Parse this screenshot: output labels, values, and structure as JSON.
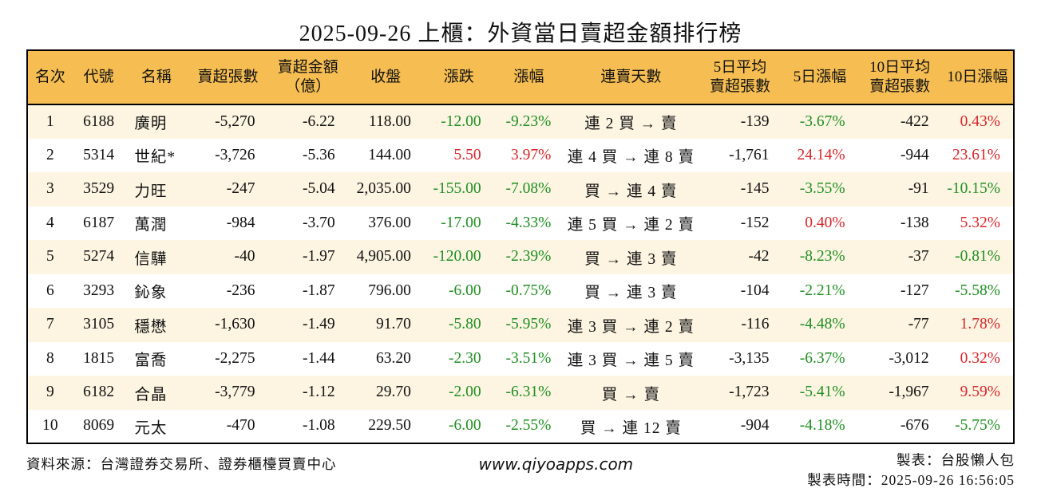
{
  "title": "2025-09-26 上櫃：外資當日賣超金額排行榜",
  "colors": {
    "up_red": "#d8262b",
    "down_green": "#1f8f22",
    "header_bg": "#f6be52",
    "row_alt_bg": "#fdf5e2",
    "border": "#000000"
  },
  "table": {
    "columns": [
      {
        "lines": [
          "名次"
        ]
      },
      {
        "lines": [
          "代號"
        ]
      },
      {
        "lines": [
          "名稱"
        ]
      },
      {
        "lines": [
          "賣超張數"
        ]
      },
      {
        "lines": [
          "賣超金額",
          "（億）"
        ]
      },
      {
        "lines": [
          "收盤"
        ]
      },
      {
        "lines": [
          "漲跌"
        ]
      },
      {
        "lines": [
          "漲幅"
        ]
      },
      {
        "lines": [
          "連賣天數"
        ]
      },
      {
        "lines": [
          "5日平均",
          "賣超張數"
        ]
      },
      {
        "lines": [
          "5日漲幅"
        ]
      },
      {
        "lines": [
          "10日平均",
          "賣超張數"
        ]
      },
      {
        "lines": [
          "10日漲幅"
        ]
      }
    ],
    "rows": [
      {
        "rank": "1",
        "code": "6188",
        "name": "廣明",
        "sell_shares": "-5,270",
        "sell_amount": "-6.22",
        "close": "118.00",
        "change": "-12.00",
        "change_pct": "-9.23%",
        "change_color": "down",
        "streak": "連 2 買 → 賣",
        "avg5": "-139",
        "pct5": "-3.67%",
        "pct5_color": "down",
        "avg10": "-422",
        "pct10": "0.43%",
        "pct10_color": "up"
      },
      {
        "rank": "2",
        "code": "5314",
        "name": "世紀*",
        "sell_shares": "-3,726",
        "sell_amount": "-5.36",
        "close": "144.00",
        "change": "5.50",
        "change_pct": "3.97%",
        "change_color": "up",
        "streak": "連 4 買 → 連 8 賣",
        "avg5": "-1,761",
        "pct5": "24.14%",
        "pct5_color": "up",
        "avg10": "-944",
        "pct10": "23.61%",
        "pct10_color": "up"
      },
      {
        "rank": "3",
        "code": "3529",
        "name": "力旺",
        "sell_shares": "-247",
        "sell_amount": "-5.04",
        "close": "2,035.00",
        "change": "-155.00",
        "change_pct": "-7.08%",
        "change_color": "down",
        "streak": "買 → 連 4 賣",
        "avg5": "-145",
        "pct5": "-3.55%",
        "pct5_color": "down",
        "avg10": "-91",
        "pct10": "-10.15%",
        "pct10_color": "down"
      },
      {
        "rank": "4",
        "code": "6187",
        "name": "萬潤",
        "sell_shares": "-984",
        "sell_amount": "-3.70",
        "close": "376.00",
        "change": "-17.00",
        "change_pct": "-4.33%",
        "change_color": "down",
        "streak": "連 5 買 → 連 2 賣",
        "avg5": "-152",
        "pct5": "0.40%",
        "pct5_color": "up",
        "avg10": "-138",
        "pct10": "5.32%",
        "pct10_color": "up"
      },
      {
        "rank": "5",
        "code": "5274",
        "name": "信驊",
        "sell_shares": "-40",
        "sell_amount": "-1.97",
        "close": "4,905.00",
        "change": "-120.00",
        "change_pct": "-2.39%",
        "change_color": "down",
        "streak": "買 → 連 3 賣",
        "avg5": "-42",
        "pct5": "-8.23%",
        "pct5_color": "down",
        "avg10": "-37",
        "pct10": "-0.81%",
        "pct10_color": "down"
      },
      {
        "rank": "6",
        "code": "3293",
        "name": "鈊象",
        "sell_shares": "-236",
        "sell_amount": "-1.87",
        "close": "796.00",
        "change": "-6.00",
        "change_pct": "-0.75%",
        "change_color": "down",
        "streak": "買 → 連 3 賣",
        "avg5": "-104",
        "pct5": "-2.21%",
        "pct5_color": "down",
        "avg10": "-127",
        "pct10": "-5.58%",
        "pct10_color": "down"
      },
      {
        "rank": "7",
        "code": "3105",
        "name": "穩懋",
        "sell_shares": "-1,630",
        "sell_amount": "-1.49",
        "close": "91.70",
        "change": "-5.80",
        "change_pct": "-5.95%",
        "change_color": "down",
        "streak": "連 3 買 → 連 2 賣",
        "avg5": "-116",
        "pct5": "-4.48%",
        "pct5_color": "down",
        "avg10": "-77",
        "pct10": "1.78%",
        "pct10_color": "up"
      },
      {
        "rank": "8",
        "code": "1815",
        "name": "富喬",
        "sell_shares": "-2,275",
        "sell_amount": "-1.44",
        "close": "63.20",
        "change": "-2.30",
        "change_pct": "-3.51%",
        "change_color": "down",
        "streak": "連 3 買 → 連 5 賣",
        "avg5": "-3,135",
        "pct5": "-6.37%",
        "pct5_color": "down",
        "avg10": "-3,012",
        "pct10": "0.32%",
        "pct10_color": "up"
      },
      {
        "rank": "9",
        "code": "6182",
        "name": "合晶",
        "sell_shares": "-3,779",
        "sell_amount": "-1.12",
        "close": "29.70",
        "change": "-2.00",
        "change_pct": "-6.31%",
        "change_color": "down",
        "streak": "買 → 賣",
        "avg5": "-1,723",
        "pct5": "-5.41%",
        "pct5_color": "down",
        "avg10": "-1,967",
        "pct10": "9.59%",
        "pct10_color": "up"
      },
      {
        "rank": "10",
        "code": "8069",
        "name": "元太",
        "sell_shares": "-470",
        "sell_amount": "-1.08",
        "close": "229.50",
        "change": "-6.00",
        "change_pct": "-2.55%",
        "change_color": "down",
        "streak": "買 → 連 12 賣",
        "avg5": "-904",
        "pct5": "-4.18%",
        "pct5_color": "down",
        "avg10": "-676",
        "pct10": "-5.75%",
        "pct10_color": "down"
      }
    ]
  },
  "footer": {
    "source": "資料來源：台灣證券交易所、證券櫃檯買賣中心",
    "website": "www.qiyoapps.com",
    "maker": "製表：台股懶人包",
    "made_time": "製表時間：2025-09-26 16:56:05"
  }
}
